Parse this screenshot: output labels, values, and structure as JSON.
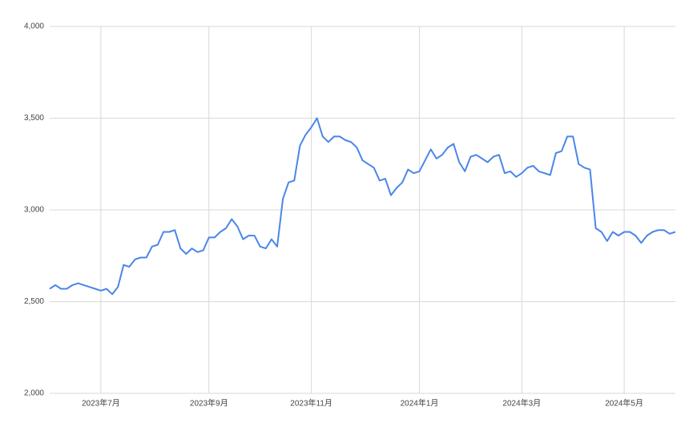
{
  "chart_data": {
    "type": "line",
    "categories": [
      null,
      null,
      null,
      null,
      null,
      null,
      null,
      null,
      null,
      "2023年7月",
      null,
      null,
      null,
      null,
      null,
      null,
      null,
      null,
      null,
      null,
      null,
      null,
      null,
      null,
      null,
      null,
      null,
      null,
      "2023年9月",
      null,
      null,
      null,
      null,
      null,
      null,
      null,
      null,
      null,
      null,
      null,
      null,
      null,
      null,
      null,
      null,
      null,
      "2023年11月",
      null,
      null,
      null,
      null,
      null,
      null,
      null,
      null,
      null,
      null,
      null,
      null,
      null,
      null,
      null,
      null,
      null,
      null,
      "2024年1月",
      null,
      null,
      null,
      null,
      null,
      null,
      null,
      null,
      null,
      null,
      null,
      null,
      null,
      null,
      null,
      null,
      null,
      "2024年3月",
      null,
      null,
      null,
      null,
      null,
      null,
      null,
      null,
      null,
      null,
      null,
      null,
      null,
      null,
      null,
      null,
      null,
      "2024年5月",
      null,
      null,
      null,
      null,
      null,
      null,
      null,
      null,
      null
    ],
    "series": [
      {
        "color": "#4a86e8",
        "values": [
          2570,
          2590,
          2570,
          2570,
          2590,
          2600,
          2590,
          2580,
          2570,
          2560,
          2570,
          2540,
          2580,
          2700,
          2690,
          2730,
          2740,
          2740,
          2800,
          2810,
          2880,
          2880,
          2890,
          2790,
          2760,
          2790,
          2770,
          2780,
          2850,
          2850,
          2880,
          2900,
          2950,
          2910,
          2840,
          2860,
          2860,
          2800,
          2790,
          2840,
          2800,
          3060,
          3150,
          3160,
          3350,
          3410,
          3450,
          3500,
          3400,
          3370,
          3400,
          3400,
          3380,
          3370,
          3340,
          3270,
          3250,
          3230,
          3160,
          3170,
          3080,
          3120,
          3150,
          3220,
          3200,
          3210,
          3270,
          3330,
          3280,
          3300,
          3340,
          3360,
          3260,
          3210,
          3290,
          3300,
          3280,
          3260,
          3290,
          3300,
          3200,
          3210,
          3180,
          3200,
          3230,
          3240,
          3210,
          3200,
          3190,
          3310,
          3320,
          3400,
          3400,
          3250,
          3230,
          3220,
          2900,
          2880,
          2830,
          2880,
          2860,
          2880,
          2880,
          2860,
          2820,
          2860,
          2880,
          2890,
          2890,
          2870,
          2880
        ]
      }
    ],
    "ylim": [
      2000,
      4000
    ],
    "yticks": [
      {
        "value": 2000,
        "label": "2,000"
      },
      {
        "value": 2500,
        "label": "2,500"
      },
      {
        "value": 3000,
        "label": "3,000"
      },
      {
        "value": 3500,
        "label": "3,500"
      },
      {
        "value": 4000,
        "label": "4,000"
      }
    ],
    "grid": true
  }
}
